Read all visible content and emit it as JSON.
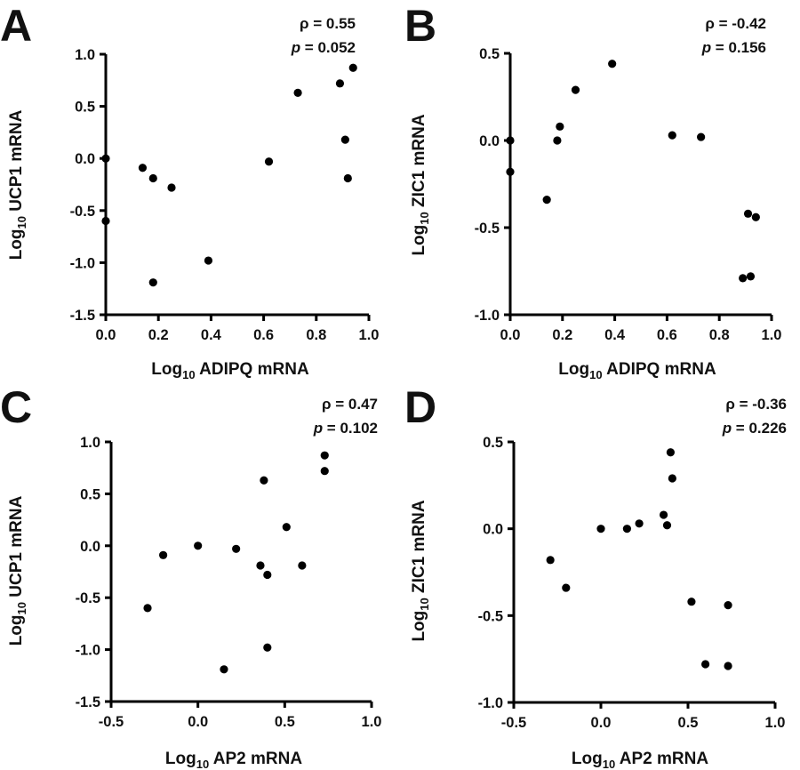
{
  "chart_data": [
    {
      "type": "scatter",
      "panel": "A",
      "rho_label": "ρ = 0.55",
      "p_label": "p = 0.052",
      "xlabel": "Log10 ADIPQ mRNA",
      "xlabel_prefix": "Log",
      "xlabel_sub": "10",
      "xlabel_rest": " ADIPQ mRNA",
      "ylabel": "Log10 UCP1 mRNA",
      "ylabel_prefix": "Log",
      "ylabel_sub": "10",
      "ylabel_rest": " UCP1 mRNA",
      "xlim": [
        0.0,
        1.0
      ],
      "ylim": [
        -1.5,
        1.0
      ],
      "xticks": [
        0.0,
        0.2,
        0.4,
        0.6,
        0.8,
        1.0
      ],
      "xtick_labels": [
        "0.0",
        "0.2",
        "0.4",
        "0.6",
        "0.8",
        "1.0"
      ],
      "yticks": [
        -1.5,
        -1.0,
        -0.5,
        0.0,
        0.5,
        1.0
      ],
      "ytick_labels": [
        "-1.5",
        "-1.0",
        "-0.5",
        "0.0",
        "0.5",
        "1.0"
      ],
      "x": [
        0.0,
        0.0,
        0.14,
        0.18,
        0.25,
        0.18,
        0.39,
        0.62,
        0.73,
        0.89,
        0.91,
        0.94,
        0.92
      ],
      "y": [
        0.0,
        -0.6,
        -0.09,
        -0.19,
        -0.28,
        -1.19,
        -0.98,
        -0.03,
        0.63,
        0.72,
        0.18,
        0.87,
        -0.19
      ]
    },
    {
      "type": "scatter",
      "panel": "B",
      "rho_label": "ρ = -0.42",
      "p_label": "p = 0.156",
      "xlabel": "Log10 ADIPQ mRNA",
      "xlabel_prefix": "Log",
      "xlabel_sub": "10",
      "xlabel_rest": " ADIPQ mRNA",
      "ylabel": "Log10 ZIC1 mRNA",
      "ylabel_prefix": "Log",
      "ylabel_sub": "10",
      "ylabel_rest": " ZIC1 mRNA",
      "xlim": [
        0.0,
        1.0
      ],
      "ylim": [
        -1.0,
        0.5
      ],
      "xticks": [
        0.0,
        0.2,
        0.4,
        0.6,
        0.8,
        1.0
      ],
      "xtick_labels": [
        "0.0",
        "0.2",
        "0.4",
        "0.6",
        "0.8",
        "1.0"
      ],
      "yticks": [
        -1.0,
        -0.5,
        0.0,
        0.5
      ],
      "ytick_labels": [
        "-1.0",
        "-0.5",
        "0.0",
        "0.5"
      ],
      "x": [
        0.0,
        0.0,
        0.14,
        0.18,
        0.19,
        0.25,
        0.39,
        0.62,
        0.73,
        0.89,
        0.91,
        0.92,
        0.94
      ],
      "y": [
        0.0,
        -0.18,
        -0.34,
        0.0,
        0.08,
        0.29,
        0.44,
        0.03,
        0.02,
        -0.79,
        -0.42,
        -0.78,
        -0.44
      ]
    },
    {
      "type": "scatter",
      "panel": "C",
      "rho_label": "ρ = 0.47",
      "p_label": "p = 0.102",
      "xlabel": "Log10 AP2 mRNA",
      "xlabel_prefix": "Log",
      "xlabel_sub": "10",
      "xlabel_rest": " AP2 mRNA",
      "ylabel": "Log10 UCP1 mRNA",
      "ylabel_prefix": "Log",
      "ylabel_sub": "10",
      "ylabel_rest": " UCP1 mRNA",
      "xlim": [
        -0.5,
        1.0
      ],
      "ylim": [
        -1.5,
        1.0
      ],
      "xticks": [
        -0.5,
        0.0,
        0.5,
        1.0
      ],
      "xtick_labels": [
        "-0.5",
        "0.0",
        "0.5",
        "1.0"
      ],
      "yticks": [
        -1.5,
        -1.0,
        -0.5,
        0.0,
        0.5,
        1.0
      ],
      "ytick_labels": [
        "-1.5",
        "-1.0",
        "-0.5",
        "0.0",
        "0.5",
        "1.0"
      ],
      "x": [
        -0.29,
        -0.2,
        0.0,
        0.15,
        0.22,
        0.36,
        0.38,
        0.4,
        0.4,
        0.51,
        0.6,
        0.73,
        0.73
      ],
      "y": [
        -0.6,
        -0.09,
        0.0,
        -1.19,
        -0.03,
        -0.19,
        0.63,
        -0.28,
        -0.98,
        0.18,
        -0.19,
        0.87,
        0.72
      ]
    },
    {
      "type": "scatter",
      "panel": "D",
      "rho_label": "ρ = -0.36",
      "p_label": "p = 0.226",
      "xlabel": "Log10 AP2 mRNA",
      "xlabel_prefix": "Log",
      "xlabel_sub": "10",
      "xlabel_rest": " AP2 mRNA",
      "ylabel": "Log10 ZIC1 mRNA",
      "ylabel_prefix": "Log",
      "ylabel_sub": "10",
      "ylabel_rest": " ZIC1 mRNA",
      "xlim": [
        -0.5,
        1.0
      ],
      "ylim": [
        -1.0,
        0.5
      ],
      "xticks": [
        -0.5,
        0.0,
        0.5,
        1.0
      ],
      "xtick_labels": [
        "-0.5",
        "0.0",
        "0.5",
        "1.0"
      ],
      "yticks": [
        -1.0,
        -0.5,
        0.0,
        0.5
      ],
      "ytick_labels": [
        "-1.0",
        "-0.5",
        "0.0",
        "0.5"
      ],
      "x": [
        -0.29,
        -0.2,
        0.0,
        0.15,
        0.22,
        0.36,
        0.38,
        0.4,
        0.41,
        0.52,
        0.6,
        0.73,
        0.73
      ],
      "y": [
        -0.18,
        -0.34,
        0.0,
        0.0,
        0.03,
        0.08,
        0.02,
        0.44,
        0.29,
        -0.42,
        -0.78,
        -0.44,
        -0.79
      ]
    }
  ]
}
